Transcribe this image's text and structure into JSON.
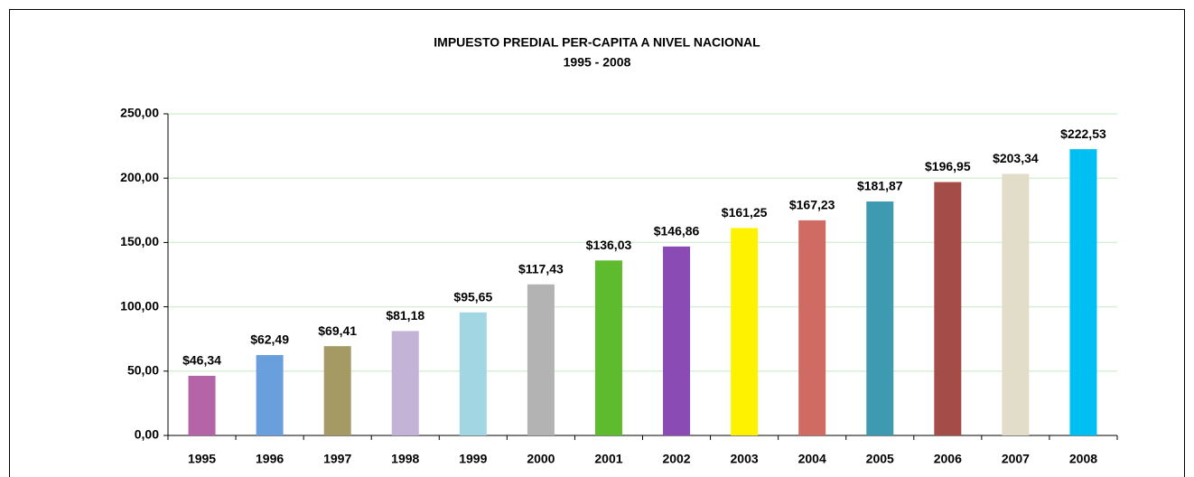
{
  "chart_data": {
    "type": "bar",
    "title": "IMPUESTO PREDIAL PER-CAPITA A NIVEL NACIONAL",
    "subtitle": "1995 - 2008",
    "categories": [
      "1995",
      "1996",
      "1997",
      "1998",
      "1999",
      "2000",
      "2001",
      "2002",
      "2003",
      "2004",
      "2005",
      "2006",
      "2007",
      "2008"
    ],
    "values": [
      46.34,
      62.49,
      69.41,
      81.18,
      95.65,
      117.43,
      136.03,
      146.86,
      161.25,
      167.23,
      181.87,
      196.95,
      203.34,
      222.53
    ],
    "value_labels": [
      "$46,34",
      "$62,49",
      "$69,41",
      "$81,18",
      "$95,65",
      "$117,43",
      "$136,03",
      "$146,86",
      "$161,25",
      "$167,23",
      "$181,87",
      "$196,95",
      "$203,34",
      "$222,53"
    ],
    "colors": [
      "#b565a7",
      "#6a9fde",
      "#a59a63",
      "#c3b3d6",
      "#a3d6e3",
      "#b3b3b3",
      "#5fbb2e",
      "#8a4bb5",
      "#fff200",
      "#d06b64",
      "#3e9ab0",
      "#a44c47",
      "#e2ddc8",
      "#00bff3"
    ],
    "ylim": [
      0,
      250
    ],
    "yticks": [
      {
        "value": 0,
        "label": "0,00"
      },
      {
        "value": 50,
        "label": "50,00"
      },
      {
        "value": 100,
        "label": "100,00"
      },
      {
        "value": 150,
        "label": "150,00"
      },
      {
        "value": 200,
        "label": "200,00"
      },
      {
        "value": 250,
        "label": "250,00"
      }
    ],
    "grid": true
  }
}
